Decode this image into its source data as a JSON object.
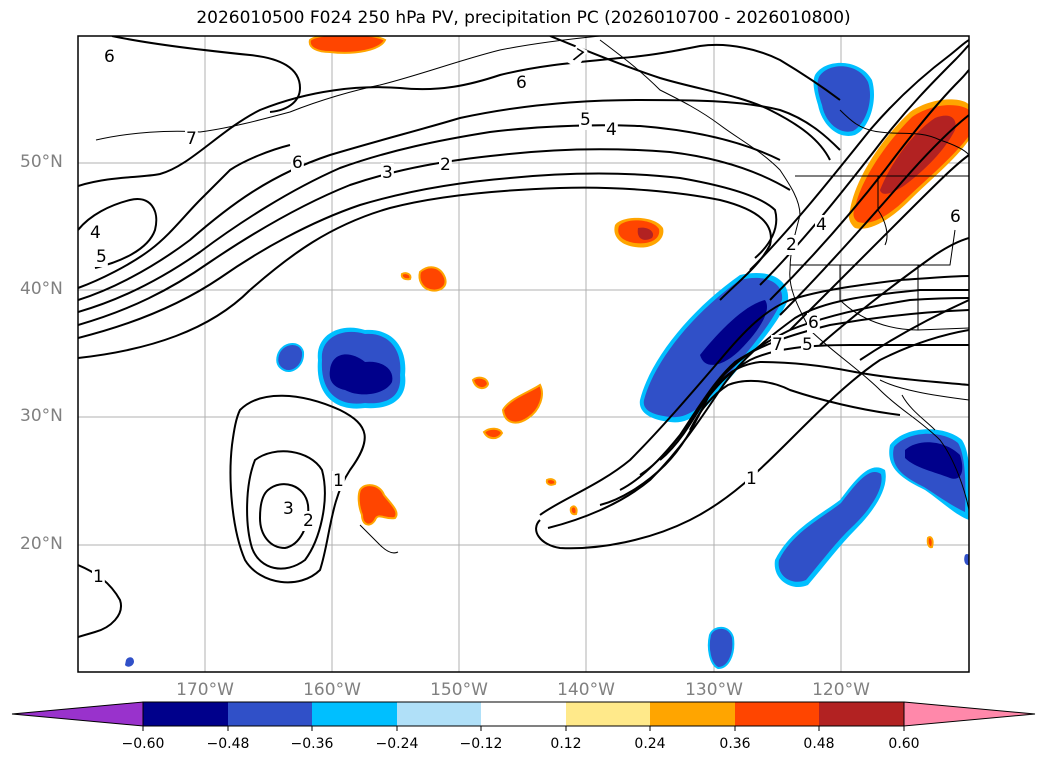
{
  "title": "2026010500 F024 250 hPa PV, precipitation PC (2026010700 - 2026010800)",
  "lat_labels": [
    "50°N",
    "40°N",
    "30°N",
    "20°N"
  ],
  "lon_labels": [
    "170°W",
    "160°W",
    "150°W",
    "140°W",
    "130°W",
    "120°W"
  ],
  "contour_labels": [
    "6",
    "7",
    "6",
    "5",
    "4",
    "7",
    "6",
    "3",
    "2",
    "4",
    "5",
    "1",
    "2",
    "3",
    "1",
    "1",
    "7",
    "5",
    "6",
    "4",
    "2",
    "6"
  ],
  "colorbar": {
    "ticks": [
      "−0.60",
      "−0.48",
      "−0.36",
      "−0.24",
      "−0.12",
      "0.12",
      "0.24",
      "0.36",
      "0.48",
      "0.60"
    ],
    "colors": [
      "#9932cc",
      "#00008b",
      "#3050c8",
      "#00bfff",
      "#b0e0f8",
      "#ffffff",
      "#ffe98a",
      "#ffa500",
      "#ff4500",
      "#b22222",
      "#ff88aa"
    ]
  },
  "colors": {
    "neg_strong": "#00008b",
    "neg_mid": "#3050c8",
    "neg_light": "#00bfff",
    "pos_light": "#ffe98a",
    "pos_mid": "#ffa500",
    "pos_strong": "#ff4500",
    "pos_max": "#b22222",
    "grid": "#b0b0b0"
  }
}
